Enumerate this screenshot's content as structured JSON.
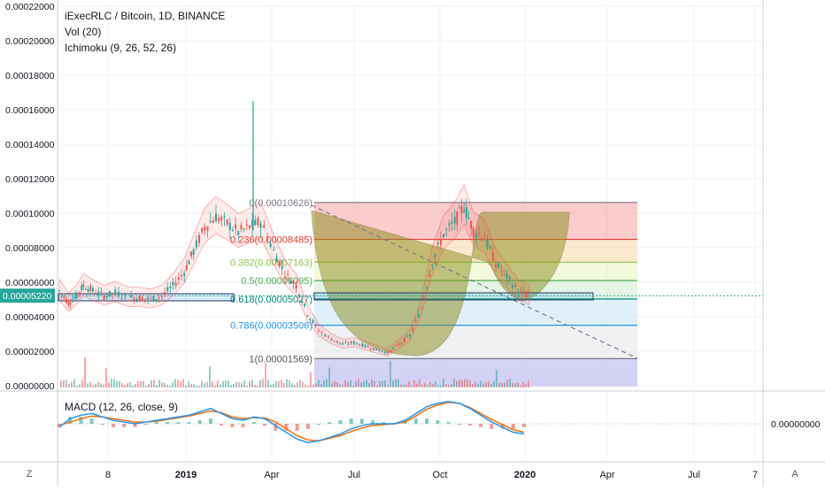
{
  "legends": {
    "symbol": "iExecRLC / Bitcoin, 1D, BINANCE",
    "vol": "Vol (20)",
    "ichimoku": "Ichimoku (9, 26, 52, 26)",
    "macd": "MACD (12, 26, close, 9)"
  },
  "corner": {
    "z": "Z",
    "a": "A"
  },
  "colors": {
    "grid": "#eef0f3",
    "price_badge": "#26a69a",
    "candle_up": "#26a69a",
    "candle_down": "#ef5350",
    "cup_fill": "#8c8c1a",
    "macd_line": "#2196f3",
    "signal_line": "#ff6d00"
  },
  "chart_data": {
    "type": "candlestick",
    "title": "iExecRLC / Bitcoin, 1D, BINANCE",
    "y_axis_ticks": [
      "0.00022000",
      "0.00020000",
      "0.00018000",
      "0.00016000",
      "0.00014000",
      "0.00012000",
      "0.00010000",
      "0.00008000",
      "0.00006000",
      "0.00004000",
      "0.00002000",
      "0.00000000"
    ],
    "y_range": [
      0.0,
      0.00022
    ],
    "x_axis_ticks": [
      "8",
      "2019",
      "Apr",
      "Jul",
      "Oct",
      "2020",
      "Apr",
      "Jul",
      "7"
    ],
    "current_price_label": "0.00005220",
    "fibonacci": [
      {
        "label": "0(0.00010626)",
        "level": 0.00010626,
        "band_color": "#f5a3a3"
      },
      {
        "label": "0.236(0.00008485)",
        "level": 8.485e-05,
        "band_color": "#f8d7a8"
      },
      {
        "label": "0.382(0.00007163)",
        "level": 7.163e-05,
        "band_color": "#e8f4c0"
      },
      {
        "label": "0.5(0.00006095)",
        "level": 6.095e-05,
        "band_color": "#cdeccf"
      },
      {
        "label": "0.618(0.00005027)",
        "level": 5.027e-05,
        "band_color": "#c6e3f5"
      },
      {
        "label": "0.786(0.00003506)",
        "level": 3.506e-05,
        "band_color": "#e3e6ea"
      },
      {
        "label": "1(0.00001569)",
        "level": 1.569e-05,
        "band_color": "#c9c8f2"
      }
    ],
    "price_path_x": [
      0,
      5,
      9,
      13,
      18,
      24,
      30,
      37,
      43,
      49,
      55,
      61,
      67,
      72,
      78,
      84,
      90,
      96,
      102,
      108,
      115,
      121,
      127,
      133,
      139,
      146,
      152,
      158,
      164,
      170,
      176,
      182,
      188,
      194,
      200,
      206,
      212,
      217,
      222,
      228,
      234,
      240,
      246,
      252
    ],
    "price_path_y": [
      5.5e-05,
      4.8e-05,
      5.2e-05,
      5.8e-05,
      5.5e-05,
      5.2e-05,
      5.4e-05,
      5.1e-05,
      5.1e-05,
      5e-05,
      5.2e-05,
      5.8e-05,
      6.6e-05,
      7.8e-05,
      9.2e-05,
      9.8e-05,
      9.4e-05,
      8.9e-05,
      9.2e-05,
      9.5e-05,
      7.8e-05,
      6.5e-05,
      5.8e-05,
      4.2e-05,
      3.2e-05,
      2.7e-05,
      2.4e-05,
      2.5e-05,
      2.3e-05,
      2.1e-05,
      1.9e-05,
      2.4e-05,
      2.9e-05,
      4.5e-05,
      7.2e-05,
      8.8e-05,
      9.5e-05,
      0.000104,
      9e-05,
      8.6e-05,
      7.1e-05,
      6.3e-05,
      5.5e-05,
      5.2e-05
    ],
    "macd_zero_label": "0.00000000",
    "macd": [
      -0.2,
      0.3,
      0.5,
      0.6,
      0.4,
      0.2,
      0.1,
      0.0,
      0.1,
      0.2,
      0.3,
      0.4,
      0.5,
      0.7,
      0.9,
      0.6,
      0.3,
      0.2,
      0.4,
      0.3,
      -0.1,
      -0.5,
      -0.9,
      -1.1,
      -1.0,
      -0.8,
      -0.6,
      -0.3,
      -0.1,
      0.0,
      0.0,
      0.0,
      0.2,
      0.6,
      1.0,
      1.2,
      1.3,
      1.2,
      0.9,
      0.5,
      0.1,
      -0.2,
      -0.5,
      -0.6
    ],
    "signal": [
      -0.1,
      0.1,
      0.3,
      0.45,
      0.4,
      0.3,
      0.2,
      0.1,
      0.1,
      0.15,
      0.25,
      0.35,
      0.45,
      0.6,
      0.75,
      0.65,
      0.4,
      0.3,
      0.35,
      0.35,
      0.1,
      -0.3,
      -0.7,
      -0.95,
      -1.0,
      -0.85,
      -0.7,
      -0.45,
      -0.25,
      -0.1,
      -0.05,
      0.0,
      0.1,
      0.45,
      0.85,
      1.1,
      1.25,
      1.2,
      0.95,
      0.6,
      0.25,
      -0.05,
      -0.35,
      -0.5
    ]
  }
}
